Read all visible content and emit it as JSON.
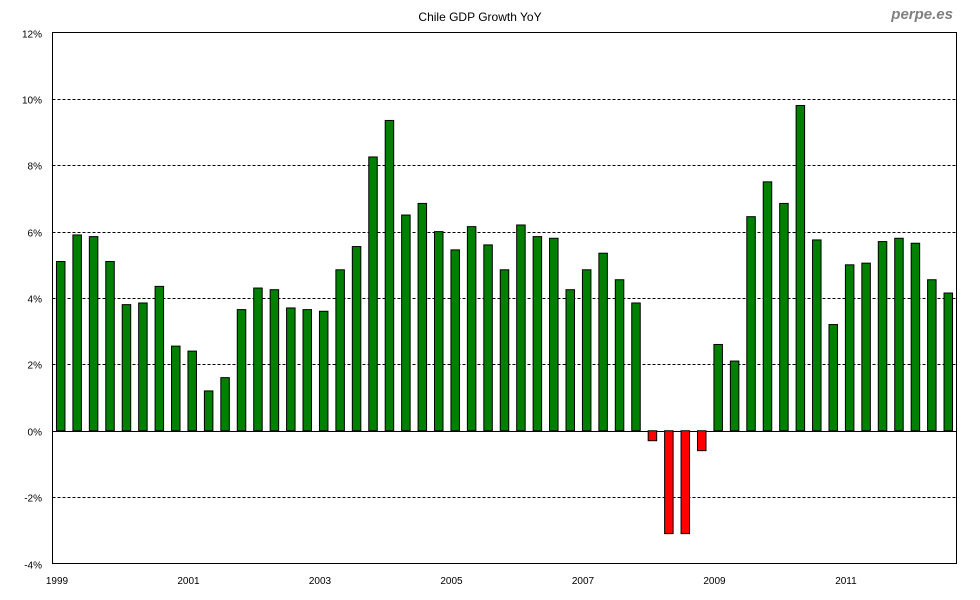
{
  "chart_data": {
    "type": "bar",
    "title": "Chile GDP Growth YoY",
    "watermark": "perpe.es",
    "xlabel": "",
    "ylabel": "",
    "ylim": [
      -4,
      12
    ],
    "yticks": [
      "12%",
      "10%",
      "8%",
      "6%",
      "4%",
      "2%",
      "0%",
      "-2%",
      "-4%"
    ],
    "ytick_values": [
      12,
      10,
      8,
      6,
      4,
      2,
      0,
      -2,
      -4
    ],
    "xticks": [
      "1999",
      "2001",
      "2003",
      "2005",
      "2007",
      "2009",
      "2011"
    ],
    "xtick_category_index": [
      0,
      8,
      16,
      24,
      32,
      40,
      48
    ],
    "grid": "horizontal dashed",
    "frequency": "quarterly, 1999 Q1 - 2012 Q3",
    "positive_color": "#008000",
    "negative_color": "#ff0000",
    "values": [
      5.1,
      5.9,
      5.85,
      5.1,
      3.8,
      3.85,
      4.35,
      2.55,
      2.4,
      1.2,
      1.6,
      3.65,
      4.3,
      4.25,
      3.7,
      3.65,
      3.6,
      4.85,
      5.55,
      8.25,
      9.35,
      6.5,
      6.85,
      6.0,
      5.45,
      6.15,
      5.6,
      4.85,
      6.2,
      5.85,
      5.8,
      4.25,
      4.85,
      5.35,
      4.55,
      3.85,
      -0.3,
      -3.1,
      -3.1,
      -0.6,
      2.6,
      2.1,
      6.45,
      7.5,
      6.85,
      9.8,
      5.75,
      3.2,
      5.0,
      5.05,
      5.7,
      5.8,
      5.65,
      4.55,
      4.15
    ]
  }
}
